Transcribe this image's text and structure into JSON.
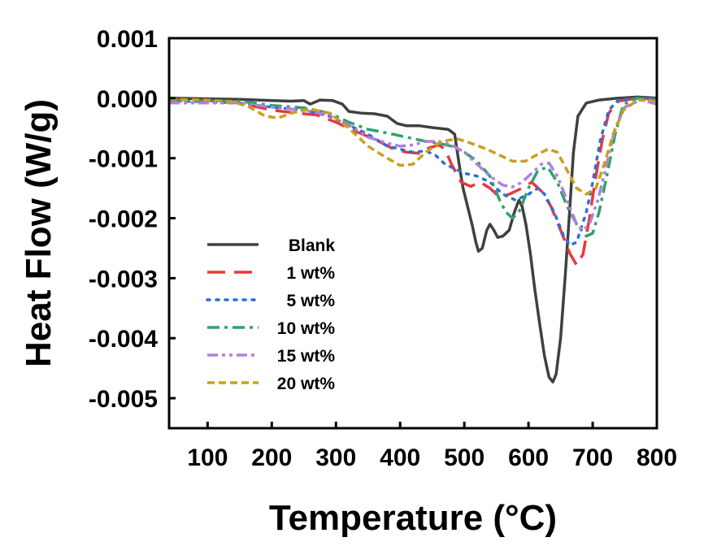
{
  "chart_data": {
    "type": "line",
    "title": "",
    "xlabel": "Temperature (°C)",
    "ylabel": "Heat Flow  (W/g)",
    "xlim": [
      40,
      800
    ],
    "ylim": [
      -0.0055,
      0.001
    ],
    "x_ticks": [
      100,
      200,
      300,
      400,
      500,
      600,
      700,
      800
    ],
    "y_ticks": [
      0.001,
      0.0,
      -0.001,
      -0.002,
      -0.003,
      -0.004,
      -0.005
    ],
    "x_tick_labels": [
      "100",
      "200",
      "300",
      "400",
      "500",
      "600",
      "700",
      "800"
    ],
    "y_tick_labels": [
      "0.001",
      "0.000",
      "-0.001",
      "-0.002",
      "-0.003",
      "-0.004",
      "-0.005"
    ],
    "grid": false,
    "legend_position": "lower-left",
    "series": [
      {
        "name": "Blank",
        "color": "#404040",
        "dash": "solid",
        "points": [
          [
            40,
            0.0
          ],
          [
            100,
            -1e-05
          ],
          [
            150,
            -2e-05
          ],
          [
            200,
            -4e-05
          ],
          [
            230,
            -5e-05
          ],
          [
            250,
            -4e-05
          ],
          [
            260,
            -0.0001
          ],
          [
            275,
            -3e-05
          ],
          [
            295,
            -4e-05
          ],
          [
            310,
            -0.0001
          ],
          [
            320,
            -0.00022
          ],
          [
            340,
            -0.00025
          ],
          [
            360,
            -0.00026
          ],
          [
            380,
            -0.0003
          ],
          [
            395,
            -0.00042
          ],
          [
            410,
            -0.00046
          ],
          [
            430,
            -0.00046
          ],
          [
            450,
            -0.00049
          ],
          [
            475,
            -0.00052
          ],
          [
            485,
            -0.0006
          ],
          [
            492,
            -0.0011
          ],
          [
            498,
            -0.0015
          ],
          [
            505,
            -0.0018
          ],
          [
            512,
            -0.0021
          ],
          [
            518,
            -0.0024
          ],
          [
            522,
            -0.00255
          ],
          [
            528,
            -0.0025
          ],
          [
            535,
            -0.0022
          ],
          [
            540,
            -0.0021
          ],
          [
            546,
            -0.0022
          ],
          [
            552,
            -0.00232
          ],
          [
            560,
            -0.0023
          ],
          [
            570,
            -0.0022
          ],
          [
            578,
            -0.0019
          ],
          [
            585,
            -0.0017
          ],
          [
            590,
            -0.0018
          ],
          [
            596,
            -0.0021
          ],
          [
            603,
            -0.0026
          ],
          [
            610,
            -0.0032
          ],
          [
            618,
            -0.0038
          ],
          [
            625,
            -0.0043
          ],
          [
            632,
            -0.00465
          ],
          [
            638,
            -0.00473
          ],
          [
            643,
            -0.0046
          ],
          [
            650,
            -0.004
          ],
          [
            657,
            -0.003
          ],
          [
            664,
            -0.0019
          ],
          [
            670,
            -0.0009
          ],
          [
            677,
            -0.0003
          ],
          [
            690,
            -8e-05
          ],
          [
            710,
            -3e-05
          ],
          [
            740,
            0.0
          ],
          [
            770,
            2e-05
          ],
          [
            800,
            0.0
          ]
        ]
      },
      {
        "name": "1 wt%",
        "color": "#e8393b",
        "dash": "long-dash",
        "points": [
          [
            40,
            -2e-05
          ],
          [
            100,
            -4e-05
          ],
          [
            150,
            -8e-05
          ],
          [
            200,
            -0.0002
          ],
          [
            240,
            -0.00025
          ],
          [
            270,
            -0.00028
          ],
          [
            300,
            -0.0004
          ],
          [
            330,
            -0.00055
          ],
          [
            360,
            -0.00068
          ],
          [
            390,
            -0.00085
          ],
          [
            410,
            -0.0009
          ],
          [
            430,
            -0.00092
          ],
          [
            445,
            -0.00083
          ],
          [
            460,
            -0.00078
          ],
          [
            470,
            -0.00085
          ],
          [
            480,
            -0.0011
          ],
          [
            495,
            -0.0014
          ],
          [
            510,
            -0.00147
          ],
          [
            525,
            -0.0014
          ],
          [
            540,
            -0.0015
          ],
          [
            555,
            -0.00165
          ],
          [
            570,
            -0.0016
          ],
          [
            590,
            -0.0015
          ],
          [
            605,
            -0.0014
          ],
          [
            620,
            -0.00155
          ],
          [
            635,
            -0.0018
          ],
          [
            650,
            -0.0022
          ],
          [
            665,
            -0.0026
          ],
          [
            675,
            -0.00278
          ],
          [
            685,
            -0.0026
          ],
          [
            695,
            -0.002
          ],
          [
            705,
            -0.0013
          ],
          [
            715,
            -0.0007
          ],
          [
            725,
            -0.00025
          ],
          [
            740,
            -5e-05
          ],
          [
            770,
            0.0
          ],
          [
            800,
            -2e-05
          ]
        ]
      },
      {
        "name": "5 wt%",
        "color": "#2e6fd6",
        "dash": "dotted",
        "points": [
          [
            40,
            -5e-05
          ],
          [
            100,
            -6e-05
          ],
          [
            150,
            -8e-05
          ],
          [
            200,
            -0.00015
          ],
          [
            250,
            -0.0002
          ],
          [
            290,
            -0.0003
          ],
          [
            320,
            -0.00045
          ],
          [
            350,
            -0.0006
          ],
          [
            380,
            -0.0008
          ],
          [
            400,
            -0.00085
          ],
          [
            420,
            -0.0009
          ],
          [
            440,
            -0.00088
          ],
          [
            455,
            -0.00095
          ],
          [
            470,
            -0.0011
          ],
          [
            480,
            -0.00115
          ],
          [
            490,
            -0.0012
          ],
          [
            500,
            -0.00125
          ],
          [
            520,
            -0.0013
          ],
          [
            540,
            -0.0014
          ],
          [
            560,
            -0.0016
          ],
          [
            580,
            -0.0017
          ],
          [
            600,
            -0.0016
          ],
          [
            615,
            -0.0015
          ],
          [
            625,
            -0.0016
          ],
          [
            640,
            -0.0019
          ],
          [
            655,
            -0.0023
          ],
          [
            665,
            -0.00245
          ],
          [
            675,
            -0.0024
          ],
          [
            690,
            -0.0019
          ],
          [
            700,
            -0.0014
          ],
          [
            712,
            -0.0007
          ],
          [
            725,
            -0.0002
          ],
          [
            740,
            -3e-05
          ],
          [
            770,
            0.0
          ],
          [
            800,
            -2e-05
          ]
        ]
      },
      {
        "name": "10 wt%",
        "color": "#2fa36b",
        "dash": "dash-dot",
        "points": [
          [
            40,
            -5e-05
          ],
          [
            100,
            -5e-05
          ],
          [
            150,
            -5e-05
          ],
          [
            200,
            -0.00012
          ],
          [
            250,
            -0.00016
          ],
          [
            290,
            -0.00025
          ],
          [
            320,
            -0.0004
          ],
          [
            350,
            -0.00052
          ],
          [
            380,
            -0.00058
          ],
          [
            410,
            -0.00065
          ],
          [
            440,
            -0.00072
          ],
          [
            460,
            -0.00075
          ],
          [
            480,
            -0.0008
          ],
          [
            500,
            -0.0009
          ],
          [
            520,
            -0.00105
          ],
          [
            540,
            -0.0013
          ],
          [
            555,
            -0.0017
          ],
          [
            565,
            -0.0019
          ],
          [
            575,
            -0.002
          ],
          [
            585,
            -0.0019
          ],
          [
            600,
            -0.0015
          ],
          [
            615,
            -0.0012
          ],
          [
            630,
            -0.00115
          ],
          [
            645,
            -0.0014
          ],
          [
            660,
            -0.0018
          ],
          [
            675,
            -0.0021
          ],
          [
            690,
            -0.0023
          ],
          [
            700,
            -0.00225
          ],
          [
            710,
            -0.0019
          ],
          [
            722,
            -0.0013
          ],
          [
            735,
            -0.0006
          ],
          [
            748,
            -0.0001
          ],
          [
            770,
            0.0
          ],
          [
            800,
            -2e-05
          ]
        ]
      },
      {
        "name": "15 wt%",
        "color": "#b27fe0",
        "dash": "dash-dot-dot",
        "points": [
          [
            40,
            -8e-05
          ],
          [
            100,
            -8e-05
          ],
          [
            150,
            -8e-05
          ],
          [
            200,
            -0.00015
          ],
          [
            250,
            -0.0002
          ],
          [
            290,
            -0.00028
          ],
          [
            320,
            -0.00045
          ],
          [
            350,
            -0.00065
          ],
          [
            380,
            -0.00075
          ],
          [
            400,
            -0.0008
          ],
          [
            420,
            -0.00078
          ],
          [
            440,
            -0.00072
          ],
          [
            460,
            -0.00072
          ],
          [
            480,
            -0.00078
          ],
          [
            500,
            -0.0009
          ],
          [
            520,
            -0.0011
          ],
          [
            540,
            -0.0013
          ],
          [
            560,
            -0.00145
          ],
          [
            575,
            -0.00148
          ],
          [
            590,
            -0.0014
          ],
          [
            605,
            -0.00125
          ],
          [
            620,
            -0.0011
          ],
          [
            632,
            -0.00108
          ],
          [
            645,
            -0.0013
          ],
          [
            660,
            -0.0017
          ],
          [
            675,
            -0.0021
          ],
          [
            685,
            -0.0022
          ],
          [
            695,
            -0.0021
          ],
          [
            708,
            -0.0017
          ],
          [
            722,
            -0.0011
          ],
          [
            735,
            -0.0005
          ],
          [
            750,
            -0.00015
          ],
          [
            775,
            -3e-05
          ],
          [
            800,
            -0.0001
          ]
        ]
      },
      {
        "name": "20 wt%",
        "color": "#c9a01e",
        "dash": "short-dash",
        "points": [
          [
            40,
            -2e-05
          ],
          [
            100,
            -3e-05
          ],
          [
            140,
            -6e-05
          ],
          [
            165,
            -0.00015
          ],
          [
            190,
            -0.0003
          ],
          [
            210,
            -0.00033
          ],
          [
            230,
            -0.00025
          ],
          [
            260,
            -0.00018
          ],
          [
            290,
            -0.00025
          ],
          [
            320,
            -0.0005
          ],
          [
            350,
            -0.0008
          ],
          [
            380,
            -0.001
          ],
          [
            400,
            -0.00112
          ],
          [
            420,
            -0.0011
          ],
          [
            440,
            -0.0009
          ],
          [
            460,
            -0.00075
          ],
          [
            475,
            -0.0007
          ],
          [
            490,
            -0.00068
          ],
          [
            510,
            -0.00075
          ],
          [
            535,
            -0.00085
          ],
          [
            555,
            -0.00095
          ],
          [
            575,
            -0.00105
          ],
          [
            595,
            -0.00105
          ],
          [
            612,
            -0.00095
          ],
          [
            630,
            -0.00085
          ],
          [
            645,
            -0.0009
          ],
          [
            660,
            -0.0012
          ],
          [
            675,
            -0.0015
          ],
          [
            690,
            -0.0016
          ],
          [
            705,
            -0.0015
          ],
          [
            718,
            -0.0011
          ],
          [
            732,
            -0.0006
          ],
          [
            748,
            -0.0002
          ],
          [
            770,
            -3e-05
          ],
          [
            800,
            -5e-05
          ]
        ]
      }
    ]
  }
}
